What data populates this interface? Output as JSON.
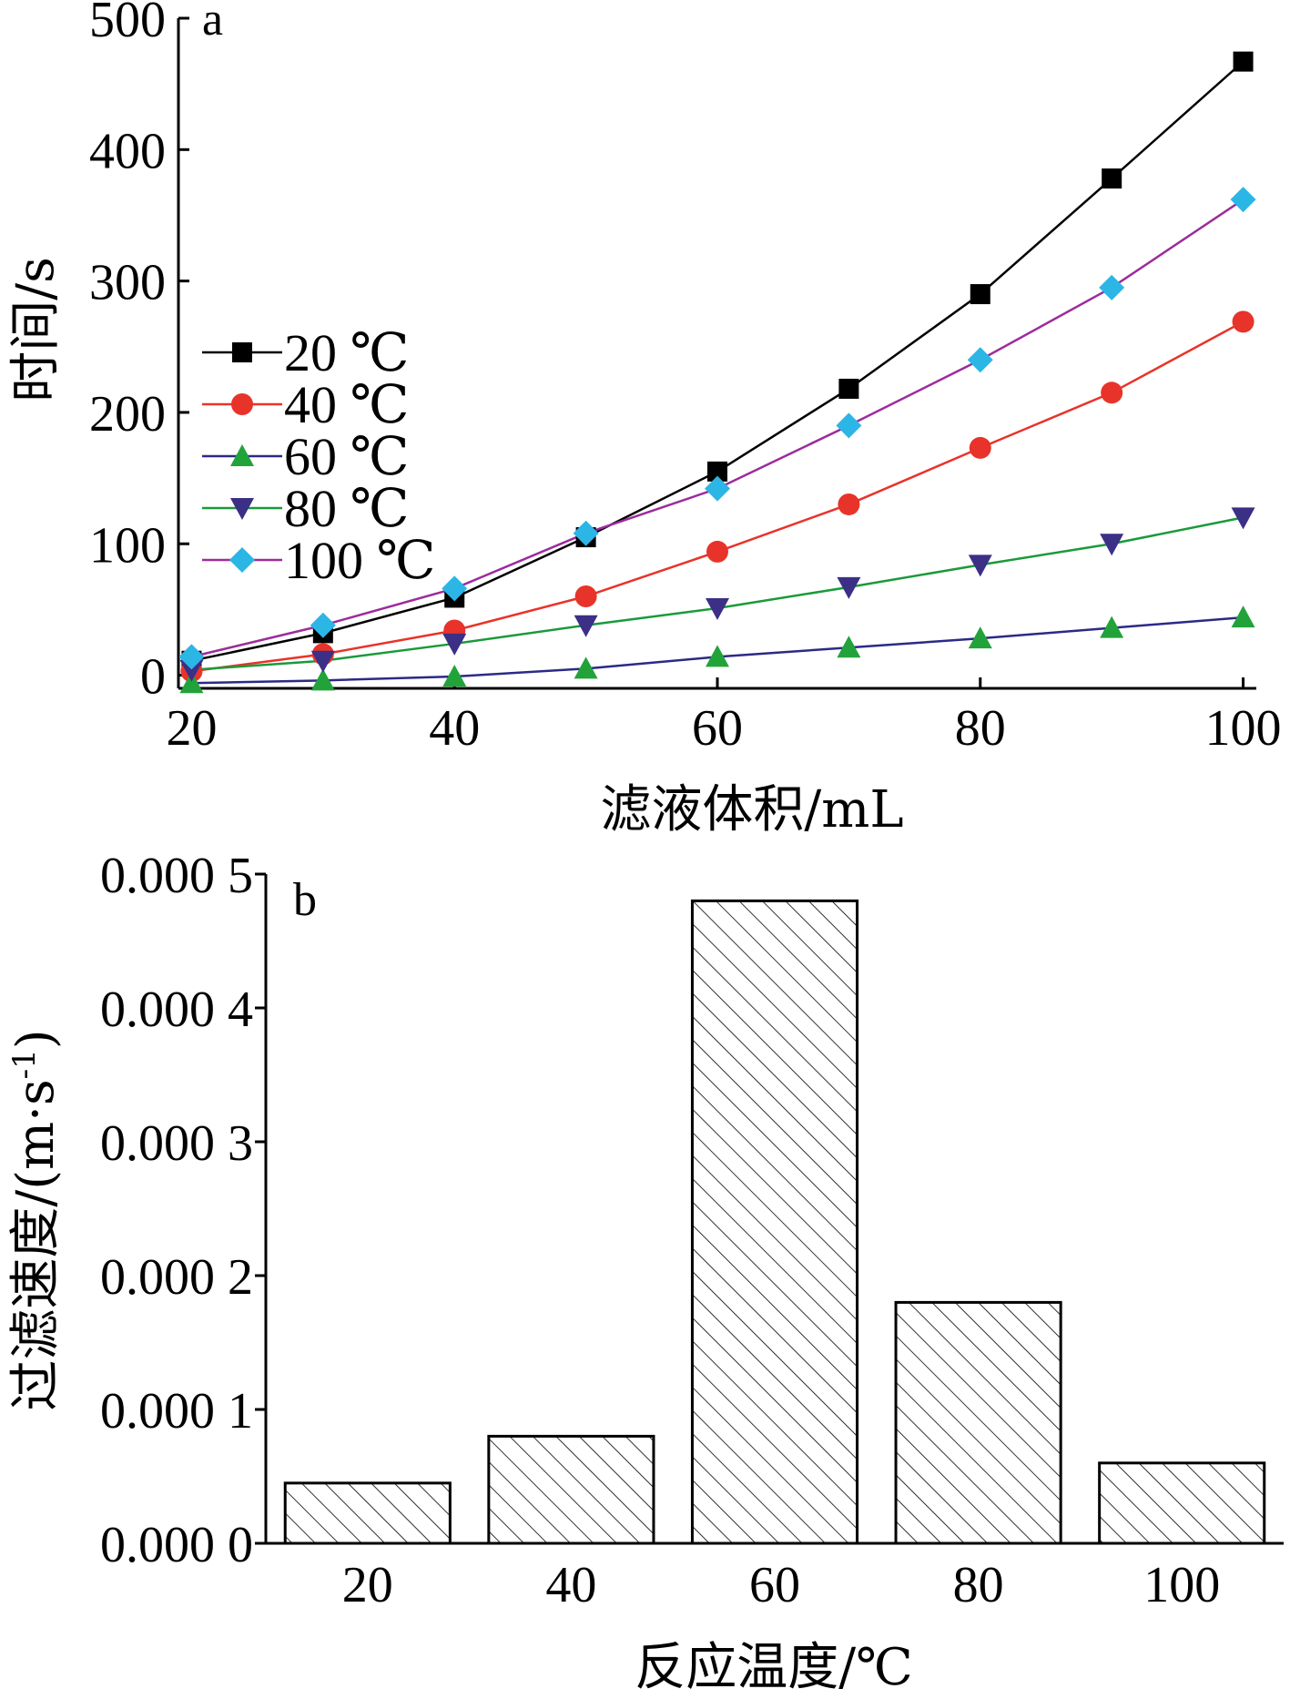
{
  "chart_data": [
    {
      "type": "line",
      "panel_label": "a",
      "xlabel": "滤液体积/mL",
      "ylabel": "时间/s",
      "xlim": [
        19,
        101
      ],
      "ylim": [
        -10,
        500
      ],
      "xticks": [
        20,
        40,
        60,
        80,
        100
      ],
      "yticks": [
        0,
        100,
        200,
        300,
        400,
        500
      ],
      "legend_position": "middle-left",
      "x": [
        20,
        30,
        40,
        50,
        60,
        70,
        80,
        90,
        100
      ],
      "series": [
        {
          "name": "20 ℃",
          "color": "#000000",
          "marker": "square",
          "values": [
            11,
            32,
            59,
            105,
            155,
            218,
            290,
            378,
            467
          ]
        },
        {
          "name": "40 ℃",
          "color": "#e8332a",
          "marker": "circle",
          "values": [
            3,
            16,
            34,
            60,
            94,
            130,
            173,
            215,
            269
          ]
        },
        {
          "name": "60 ℃",
          "color": "#22a33a",
          "marker": "triangle-up",
          "line_color": "#2b2a86",
          "values": [
            -6,
            -4,
            -1,
            5,
            14,
            21,
            28,
            36,
            44
          ]
        },
        {
          "name": "80 ℃",
          "color": "#3b2f86",
          "marker": "triangle-down",
          "line_color": "#1a9a3a",
          "values": [
            4,
            11,
            24,
            38,
            51,
            67,
            84,
            100,
            120
          ]
        },
        {
          "name": "100 ℃",
          "color": "#2bb6e6",
          "marker": "diamond",
          "line_color": "#9c2c9c",
          "values": [
            14,
            38,
            66,
            108,
            142,
            190,
            240,
            295,
            362
          ]
        }
      ]
    },
    {
      "type": "bar",
      "panel_label": "b",
      "xlabel": "反应温度/℃",
      "ylabel": "过滤速度/(m·s",
      "ylabel_sup": "-1",
      "ylabel_end": ")",
      "categories": [
        "20",
        "40",
        "60",
        "80",
        "100"
      ],
      "values": [
        4.5e-05,
        8e-05,
        0.00048,
        0.00018,
        6e-05
      ],
      "ylim": [
        0,
        0.0005
      ],
      "yticks": [
        0,
        0.0001,
        0.0002,
        0.0003,
        0.0004,
        0.0005
      ],
      "ytick_labels": [
        "0.000 0",
        "0.000 1",
        "0.000 2",
        "0.000 3",
        "0.000 4",
        "0.000 5"
      ],
      "bar_fill": "diagonal-hatch"
    }
  ]
}
